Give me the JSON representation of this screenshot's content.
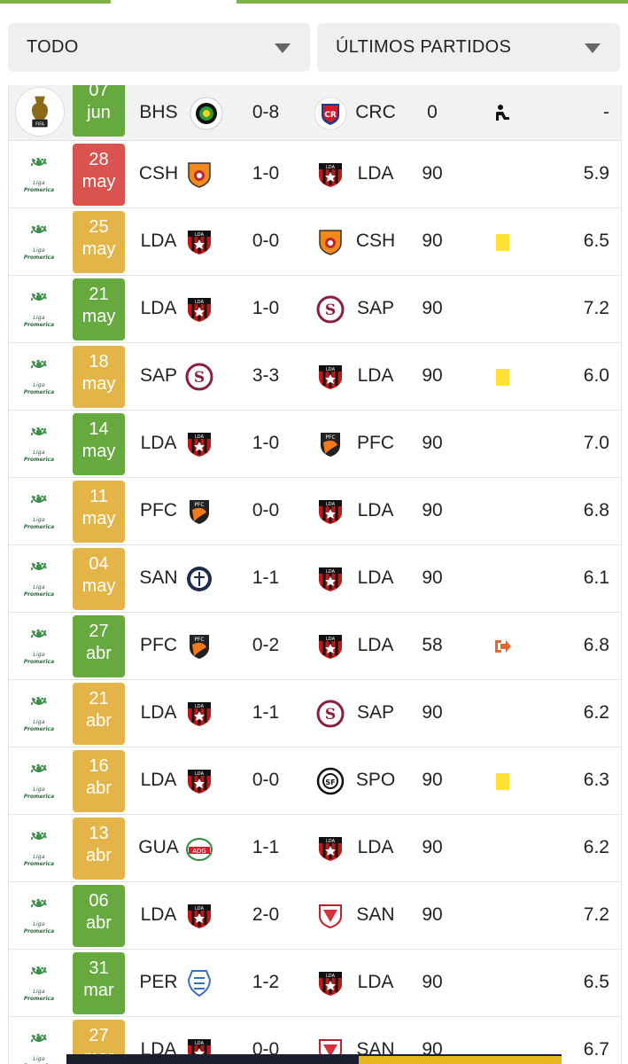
{
  "filters": {
    "competition": "TODO",
    "period": "ÚLTIMOS PARTIDOS"
  },
  "colors": {
    "win": "#66a93e",
    "draw": "#e3b548",
    "loss": "#d9534f",
    "yellow_card": "#ffe033",
    "sub_out": "#e8662a",
    "accent": "#7cb342"
  },
  "matches": [
    {
      "competition": "fifa-icon",
      "day": "07",
      "month": "jun",
      "result": "win",
      "home": "BHS",
      "score": "0-8",
      "away": "CRC",
      "minutes": "0",
      "event": "bench-icon",
      "rating": "-"
    },
    {
      "competition": "liga-promerica-icon",
      "day": "28",
      "month": "may",
      "result": "loss",
      "home": "CSH",
      "score": "1-0",
      "away": "LDA",
      "minutes": "90",
      "event": "",
      "rating": "5.9"
    },
    {
      "competition": "liga-promerica-icon",
      "day": "25",
      "month": "may",
      "result": "draw",
      "home": "LDA",
      "score": "0-0",
      "away": "CSH",
      "minutes": "90",
      "event": "yellow-card-icon",
      "rating": "6.5"
    },
    {
      "competition": "liga-promerica-icon",
      "day": "21",
      "month": "may",
      "result": "win",
      "home": "LDA",
      "score": "1-0",
      "away": "SAP",
      "minutes": "90",
      "event": "",
      "rating": "7.2"
    },
    {
      "competition": "liga-promerica-icon",
      "day": "18",
      "month": "may",
      "result": "draw",
      "home": "SAP",
      "score": "3-3",
      "away": "LDA",
      "minutes": "90",
      "event": "yellow-card-icon",
      "rating": "6.0"
    },
    {
      "competition": "liga-promerica-icon",
      "day": "14",
      "month": "may",
      "result": "win",
      "home": "LDA",
      "score": "1-0",
      "away": "PFC",
      "minutes": "90",
      "event": "",
      "rating": "7.0"
    },
    {
      "competition": "liga-promerica-icon",
      "day": "11",
      "month": "may",
      "result": "draw",
      "home": "PFC",
      "score": "0-0",
      "away": "LDA",
      "minutes": "90",
      "event": "",
      "rating": "6.8"
    },
    {
      "competition": "liga-promerica-icon",
      "day": "04",
      "month": "may",
      "result": "draw",
      "home": "SAN",
      "score": "1-1",
      "away": "LDA",
      "minutes": "90",
      "event": "",
      "rating": "6.1"
    },
    {
      "competition": "liga-promerica-icon",
      "day": "27",
      "month": "abr",
      "result": "win",
      "home": "PFC",
      "score": "0-2",
      "away": "LDA",
      "minutes": "58",
      "event": "substitution-out-icon",
      "rating": "6.8"
    },
    {
      "competition": "liga-promerica-icon",
      "day": "21",
      "month": "abr",
      "result": "draw",
      "home": "LDA",
      "score": "1-1",
      "away": "SAP",
      "minutes": "90",
      "event": "",
      "rating": "6.2"
    },
    {
      "competition": "liga-promerica-icon",
      "day": "16",
      "month": "abr",
      "result": "draw",
      "home": "LDA",
      "score": "0-0",
      "away": "SPO",
      "minutes": "90",
      "event": "yellow-card-icon",
      "rating": "6.3"
    },
    {
      "competition": "liga-promerica-icon",
      "day": "13",
      "month": "abr",
      "result": "draw",
      "home": "GUA",
      "score": "1-1",
      "away": "LDA",
      "minutes": "90",
      "event": "",
      "rating": "6.2"
    },
    {
      "competition": "liga-promerica-icon",
      "day": "06",
      "month": "abr",
      "result": "win",
      "home": "LDA",
      "score": "2-0",
      "away": "SAN",
      "minutes": "90",
      "event": "",
      "rating": "7.2"
    },
    {
      "competition": "liga-promerica-icon",
      "day": "31",
      "month": "mar",
      "result": "win",
      "home": "PER",
      "score": "1-2",
      "away": "LDA",
      "minutes": "90",
      "event": "",
      "rating": "6.5"
    },
    {
      "competition": "liga-promerica-icon",
      "day": "27",
      "month": "mar",
      "result": "draw",
      "home": "LDA",
      "score": "0-0",
      "away": "SAN",
      "minutes": "90",
      "event": "",
      "rating": "6.7"
    }
  ]
}
